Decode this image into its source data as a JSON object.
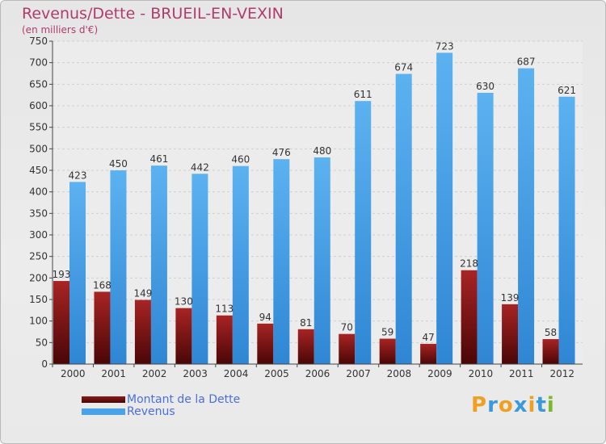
{
  "header": {
    "title": "Revenus/Dette - BRUEIL-EN-VEXIN",
    "subtitle": "(en milliers d'€)"
  },
  "chart_data": {
    "type": "bar",
    "title": "Revenus/Dette - BRUEIL-EN-VEXIN",
    "subtitle": "(en milliers d'€)",
    "categories": [
      "2000",
      "2001",
      "2002",
      "2003",
      "2004",
      "2005",
      "2006",
      "2007",
      "2008",
      "2009",
      "2010",
      "2011",
      "2012"
    ],
    "series": [
      {
        "name": "Montant de la Dette",
        "values": [
          193,
          168,
          149,
          130,
          113,
          94,
          81,
          70,
          59,
          47,
          218,
          139,
          58
        ],
        "color": "#8b1a1a"
      },
      {
        "name": "Revenus",
        "values": [
          423,
          450,
          461,
          442,
          460,
          476,
          480,
          611,
          674,
          723,
          630,
          687,
          621
        ],
        "color": "#4aa3e8"
      }
    ],
    "yticks": [
      0,
      50,
      100,
      150,
      200,
      250,
      300,
      350,
      400,
      450,
      500,
      550,
      600,
      650,
      700,
      750
    ],
    "ylim": [
      0,
      750
    ],
    "grid": true,
    "legend": "bottom-left"
  },
  "legend": {
    "items": [
      {
        "label": "Montant de la Dette",
        "color": "#6b0f0f"
      },
      {
        "label": "Revenus",
        "color": "#4aa3e8"
      }
    ]
  },
  "logo": {
    "letters": [
      "P",
      "r",
      "o",
      "x",
      "i",
      "t",
      "i"
    ],
    "colors": [
      "#f0a020",
      "#3a9ad9",
      "#f0a020",
      "#3a9ad9",
      "#f0a020",
      "#3a9ad9",
      "#7ab82c"
    ]
  }
}
